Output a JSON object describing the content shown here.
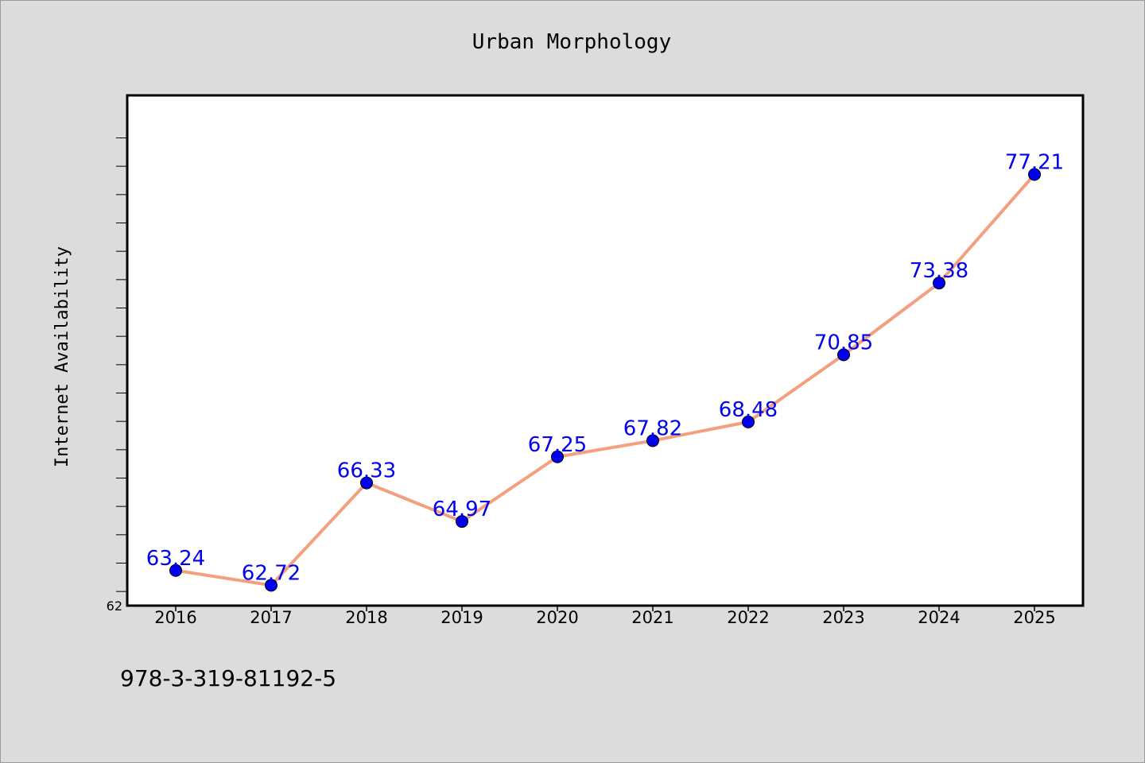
{
  "chart_data": {
    "type": "line",
    "title": "Urban Morphology",
    "xlabel": "",
    "ylabel": "Internet Availability",
    "categories": [
      "2016",
      "2017",
      "2018",
      "2019",
      "2020",
      "2021",
      "2022",
      "2023",
      "2024",
      "2025"
    ],
    "series": [
      {
        "values": [
          63.24,
          62.72,
          66.33,
          64.97,
          67.25,
          67.82,
          68.48,
          70.85,
          73.38,
          77.21
        ],
        "labels": [
          "63.24",
          "62.72",
          "66.33",
          "64.97",
          "67.25",
          "67.82",
          "68.48",
          "70.85",
          "73.38",
          "77.21"
        ]
      }
    ],
    "ylim": [
      62,
      80
    ],
    "yticks": [
      {
        "value": 62,
        "label": "62"
      }
    ],
    "grid": false,
    "legend": "none",
    "colors": {
      "line": "#f4a07f",
      "marker": "#0000ee",
      "label": "#0000ee",
      "plot_background": "#ffffff",
      "figure_background": "#dcdcdc"
    }
  },
  "footer": {
    "text": "978-3-319-81192-5"
  }
}
